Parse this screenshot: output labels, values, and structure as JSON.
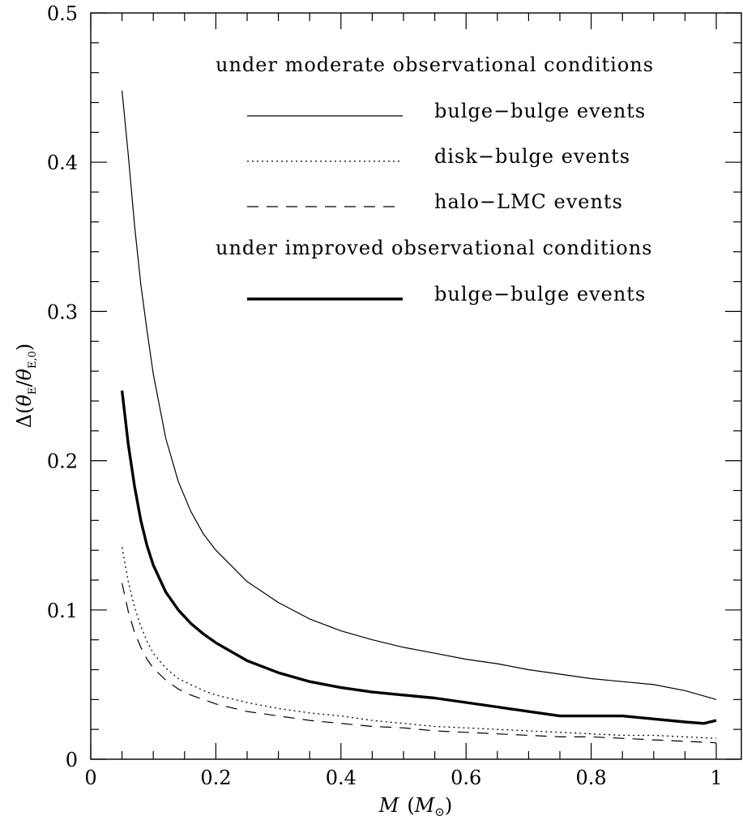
{
  "chart_data": {
    "type": "line",
    "title": "",
    "xlabel": "M  (M⊙)",
    "ylabel": "Δ(θE/θE,0)",
    "xlim": [
      0,
      1.05
    ],
    "ylim": [
      0,
      0.5
    ],
    "x_ticks": [
      {
        "value": 0,
        "label": "0"
      },
      {
        "value": 0.2,
        "label": "0.2"
      },
      {
        "value": 0.4,
        "label": "0.4"
      },
      {
        "value": 0.6,
        "label": "0.6"
      },
      {
        "value": 0.8,
        "label": "0.8"
      },
      {
        "value": 1,
        "label": "1"
      }
    ],
    "y_ticks": [
      {
        "value": 0,
        "label": "0"
      },
      {
        "value": 0.1,
        "label": "0.1"
      },
      {
        "value": 0.2,
        "label": "0.2"
      },
      {
        "value": 0.3,
        "label": "0.3"
      },
      {
        "value": 0.4,
        "label": "0.4"
      },
      {
        "value": 0.5,
        "label": "0.5"
      }
    ],
    "x_minor_step": 0.05,
    "y_minor_step": 0.02,
    "grid": false,
    "legend_groups": [
      {
        "heading": "under moderate observational conditions",
        "entries": [
          {
            "label": "bulge−bulge events",
            "style": "solid"
          },
          {
            "label": "disk−bulge events",
            "style": "dotted"
          },
          {
            "label": "halo−LMC events",
            "style": "dashed"
          }
        ]
      },
      {
        "heading": "under improved observational conditions",
        "entries": [
          {
            "label": "bulge−bulge events",
            "style": "thick-solid"
          }
        ]
      }
    ],
    "series": [
      {
        "name": "bulge−bulge events",
        "condition": "moderate",
        "style": "solid",
        "x": [
          0.05,
          0.06,
          0.07,
          0.08,
          0.09,
          0.1,
          0.12,
          0.14,
          0.16,
          0.18,
          0.2,
          0.25,
          0.3,
          0.35,
          0.4,
          0.45,
          0.5,
          0.55,
          0.6,
          0.65,
          0.7,
          0.75,
          0.8,
          0.85,
          0.9,
          0.95,
          1.0
        ],
        "y": [
          0.448,
          0.405,
          0.358,
          0.318,
          0.287,
          0.258,
          0.215,
          0.186,
          0.166,
          0.151,
          0.14,
          0.119,
          0.105,
          0.094,
          0.086,
          0.08,
          0.075,
          0.071,
          0.067,
          0.064,
          0.06,
          0.057,
          0.054,
          0.052,
          0.05,
          0.046,
          0.04
        ]
      },
      {
        "name": "bulge−bulge events",
        "condition": "improved",
        "style": "thick-solid",
        "x": [
          0.05,
          0.06,
          0.07,
          0.08,
          0.09,
          0.1,
          0.12,
          0.14,
          0.16,
          0.18,
          0.2,
          0.25,
          0.3,
          0.35,
          0.4,
          0.45,
          0.5,
          0.55,
          0.6,
          0.65,
          0.7,
          0.75,
          0.8,
          0.85,
          0.9,
          0.95,
          0.98,
          1.0
        ],
        "y": [
          0.247,
          0.211,
          0.183,
          0.16,
          0.143,
          0.13,
          0.112,
          0.1,
          0.091,
          0.084,
          0.078,
          0.066,
          0.058,
          0.052,
          0.048,
          0.045,
          0.043,
          0.041,
          0.038,
          0.035,
          0.032,
          0.029,
          0.029,
          0.029,
          0.027,
          0.025,
          0.024,
          0.026
        ]
      },
      {
        "name": "disk−bulge events",
        "condition": "moderate",
        "style": "dotted",
        "x": [
          0.05,
          0.06,
          0.07,
          0.08,
          0.09,
          0.1,
          0.12,
          0.14,
          0.16,
          0.18,
          0.2,
          0.25,
          0.3,
          0.35,
          0.4,
          0.45,
          0.5,
          0.55,
          0.6,
          0.65,
          0.7,
          0.75,
          0.8,
          0.85,
          0.9,
          0.95,
          1.0
        ],
        "y": [
          0.142,
          0.119,
          0.102,
          0.089,
          0.079,
          0.071,
          0.061,
          0.054,
          0.05,
          0.046,
          0.043,
          0.038,
          0.034,
          0.031,
          0.029,
          0.026,
          0.024,
          0.022,
          0.021,
          0.02,
          0.019,
          0.018,
          0.017,
          0.016,
          0.016,
          0.015,
          0.014
        ]
      },
      {
        "name": "halo−LMC events",
        "condition": "moderate",
        "style": "dashed",
        "x": [
          0.05,
          0.06,
          0.07,
          0.08,
          0.09,
          0.1,
          0.12,
          0.14,
          0.16,
          0.18,
          0.2,
          0.25,
          0.3,
          0.35,
          0.4,
          0.45,
          0.5,
          0.55,
          0.6,
          0.65,
          0.7,
          0.75,
          0.8,
          0.85,
          0.9,
          0.95,
          1.0
        ],
        "y": [
          0.118,
          0.099,
          0.085,
          0.075,
          0.067,
          0.061,
          0.053,
          0.047,
          0.043,
          0.04,
          0.037,
          0.032,
          0.029,
          0.026,
          0.024,
          0.022,
          0.021,
          0.019,
          0.018,
          0.017,
          0.016,
          0.015,
          0.015,
          0.014,
          0.013,
          0.012,
          0.011
        ]
      }
    ]
  }
}
